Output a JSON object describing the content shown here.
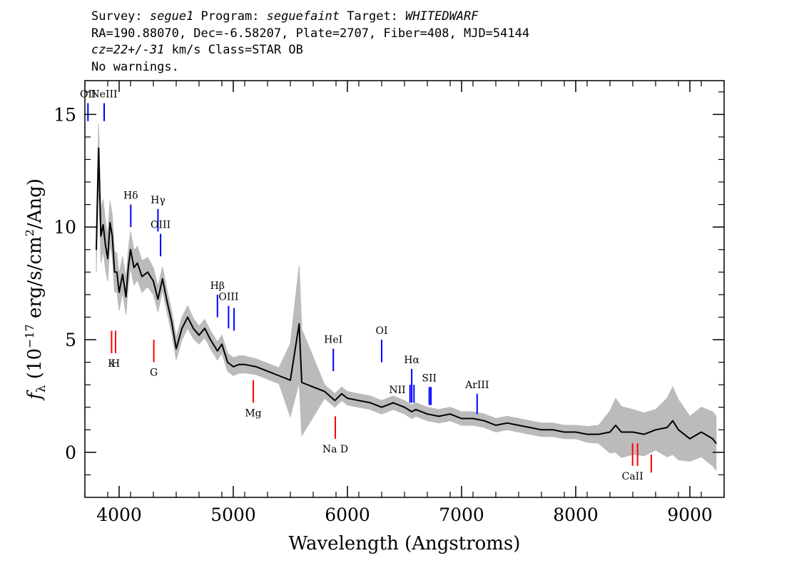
{
  "header": {
    "survey_label": "Survey: ",
    "survey": "segue1",
    "program_label": " Program: ",
    "program": "seguefaint",
    "target_label": " Target: ",
    "target": "WHITEDWARF",
    "line2": "RA=190.88070, Dec=-6.58207, Plate=2707, Fiber=408, MJD=54144",
    "cz": "cz=22+/-31",
    "line3_rest": " km/s Class=STAR OB",
    "line4": "No warnings."
  },
  "chart_data": {
    "type": "line",
    "title": "",
    "xlabel": "Wavelength (Angstroms)",
    "ylabel": "fλ (10⁻¹⁷ erg/s/cm²/Ang)",
    "xlim": [
      3700,
      9300
    ],
    "ylim": [
      -2,
      16.5
    ],
    "xticks": [
      4000,
      5000,
      6000,
      7000,
      8000,
      9000
    ],
    "xtick_labels": [
      "4000",
      "5000",
      "6000",
      "7000",
      "8000",
      "9000"
    ],
    "yticks": [
      0,
      5,
      10,
      15
    ],
    "ytick_labels": [
      "0",
      "5",
      "10",
      "15"
    ],
    "grid": false,
    "series": [
      {
        "style": "flux",
        "color": "#000000",
        "x": [
          3800,
          3820,
          3840,
          3860,
          3880,
          3900,
          3920,
          3940,
          3960,
          3980,
          4000,
          4030,
          4060,
          4080,
          4100,
          4130,
          4160,
          4200,
          4250,
          4300,
          4340,
          4380,
          4420,
          4460,
          4500,
          4550,
          4600,
          4650,
          4700,
          4750,
          4800,
          4861,
          4900,
          4950,
          5000,
          5050,
          5100,
          5200,
          5300,
          5400,
          5500,
          5577,
          5600,
          5700,
          5800,
          5890,
          5950,
          6000,
          6100,
          6200,
          6300,
          6400,
          6500,
          6563,
          6600,
          6700,
          6800,
          6900,
          7000,
          7100,
          7200,
          7300,
          7400,
          7500,
          7600,
          7700,
          7800,
          7900,
          8000,
          8100,
          8200,
          8300,
          8350,
          8400,
          8500,
          8600,
          8700,
          8800,
          8850,
          8900,
          9000,
          9100,
          9200,
          9230
        ],
        "y": [
          9.0,
          13.5,
          9.6,
          10.1,
          9.2,
          8.6,
          10.2,
          9.6,
          8.0,
          8.0,
          7.1,
          7.9,
          6.9,
          8.2,
          9.0,
          8.2,
          8.4,
          7.8,
          8.0,
          7.6,
          6.8,
          7.7,
          6.7,
          5.8,
          4.6,
          5.5,
          6.0,
          5.5,
          5.2,
          5.5,
          5.0,
          4.5,
          4.8,
          4.0,
          3.8,
          3.9,
          3.9,
          3.8,
          3.6,
          3.4,
          3.2,
          5.7,
          3.1,
          2.9,
          2.7,
          2.3,
          2.6,
          2.4,
          2.3,
          2.2,
          2.0,
          2.2,
          2.0,
          1.8,
          1.9,
          1.7,
          1.6,
          1.7,
          1.5,
          1.5,
          1.4,
          1.2,
          1.3,
          1.2,
          1.1,
          1.0,
          1.0,
          0.9,
          0.9,
          0.8,
          0.8,
          0.9,
          1.2,
          0.9,
          0.9,
          0.8,
          1.0,
          1.1,
          1.4,
          1.0,
          0.6,
          0.9,
          0.6,
          0.4
        ]
      },
      {
        "style": "error",
        "color": "#bbbbbb",
        "x": [
          3800,
          3840,
          3900,
          3960,
          4000,
          4100,
          4200,
          4300,
          4400,
          4500,
          4600,
          4700,
          4800,
          4900,
          5000,
          5200,
          5400,
          5577,
          5800,
          6000,
          6200,
          6400,
          6600,
          6800,
          7000,
          7200,
          7400,
          7600,
          7800,
          8000,
          8200,
          8350,
          8500,
          8700,
          8850,
          9000,
          9200
        ],
        "y": [
          1.0,
          1.2,
          1.0,
          0.9,
          0.8,
          0.8,
          0.7,
          0.6,
          0.5,
          0.5,
          0.5,
          0.4,
          0.4,
          0.4,
          0.4,
          0.35,
          0.35,
          2.6,
          0.3,
          0.3,
          0.3,
          0.3,
          0.3,
          0.3,
          0.3,
          0.3,
          0.3,
          0.3,
          0.3,
          0.3,
          0.4,
          1.2,
          1.0,
          0.9,
          1.5,
          1.0,
          1.2
        ]
      }
    ],
    "line_markers": [
      {
        "label": "OII",
        "x": 3727,
        "y0": 14.7,
        "y1": 15.5,
        "color": "#0000ff",
        "label_pos": "top"
      },
      {
        "label": "NeIII",
        "x": 3869,
        "y0": 14.7,
        "y1": 15.5,
        "color": "#0000ff",
        "label_pos": "top"
      },
      {
        "label": "Hδ",
        "x": 4102,
        "y0": 10.0,
        "y1": 11.0,
        "color": "#0000ff",
        "label_pos": "top"
      },
      {
        "label": "Hγ",
        "x": 4340,
        "y0": 9.8,
        "y1": 10.8,
        "color": "#0000ff",
        "label_pos": "top"
      },
      {
        "label": "OIII",
        "x": 4363,
        "y0": 8.7,
        "y1": 9.7,
        "color": "#0000ff",
        "label_pos": "top"
      },
      {
        "label": "Hβ",
        "x": 4861,
        "y0": 6.0,
        "y1": 7.0,
        "color": "#0000ff",
        "label_pos": "top"
      },
      {
        "label": "OIII",
        "x": 4959,
        "y0": 5.5,
        "y1": 6.5,
        "color": "#0000ff",
        "label_pos": "top"
      },
      {
        "label": "",
        "x": 5007,
        "y0": 5.4,
        "y1": 6.4,
        "color": "#0000ff",
        "label_pos": "top"
      },
      {
        "label": "HeI",
        "x": 5876,
        "y0": 3.6,
        "y1": 4.6,
        "color": "#0000ff",
        "label_pos": "top"
      },
      {
        "label": "OI",
        "x": 6300,
        "y0": 4.0,
        "y1": 5.0,
        "color": "#0000ff",
        "label_pos": "top"
      },
      {
        "label": "NII",
        "x": 6548,
        "y0": 2.2,
        "y1": 3.0,
        "color": "#0000ff",
        "label_pos": "left"
      },
      {
        "label": "Hα",
        "x": 6563,
        "y0": 2.2,
        "y1": 3.7,
        "color": "#0000ff",
        "label_pos": "top"
      },
      {
        "label": "NII",
        "x": 6583,
        "y0": 2.2,
        "y1": 3.0,
        "color": "#0000ff",
        "label_pos": "none"
      },
      {
        "label": "SII",
        "x": 6717,
        "y0": 2.1,
        "y1": 2.9,
        "color": "#0000ff",
        "label_pos": "top"
      },
      {
        "label": "",
        "x": 6731,
        "y0": 2.1,
        "y1": 2.9,
        "color": "#0000ff",
        "label_pos": "top"
      },
      {
        "label": "ArIII",
        "x": 7136,
        "y0": 1.7,
        "y1": 2.6,
        "color": "#0000ff",
        "label_pos": "top"
      },
      {
        "label": "K",
        "x": 3934,
        "y0": 4.4,
        "y1": 5.4,
        "color": "#ff0000",
        "label_pos": "bottom"
      },
      {
        "label": "H",
        "x": 3969,
        "y0": 4.4,
        "y1": 5.4,
        "color": "#ff0000",
        "label_pos": "bottom"
      },
      {
        "label": "G",
        "x": 4304,
        "y0": 4.0,
        "y1": 5.0,
        "color": "#ff0000",
        "label_pos": "bottom"
      },
      {
        "label": "Mg",
        "x": 5175,
        "y0": 2.2,
        "y1": 3.2,
        "color": "#ff0000",
        "label_pos": "bottom"
      },
      {
        "label": "Na D",
        "x": 5894,
        "y0": 0.6,
        "y1": 1.6,
        "color": "#ff0000",
        "label_pos": "bottom"
      },
      {
        "label": "CaII",
        "x": 8498,
        "y0": -0.6,
        "y1": 0.4,
        "color": "#ff0000",
        "label_pos": "bottom"
      },
      {
        "label": "",
        "x": 8542,
        "y0": -0.6,
        "y1": 0.4,
        "color": "#ff0000",
        "label_pos": "bottom"
      },
      {
        "label": "",
        "x": 8662,
        "y0": -0.9,
        "y1": -0.1,
        "color": "#ff0000",
        "label_pos": "bottom"
      }
    ]
  }
}
